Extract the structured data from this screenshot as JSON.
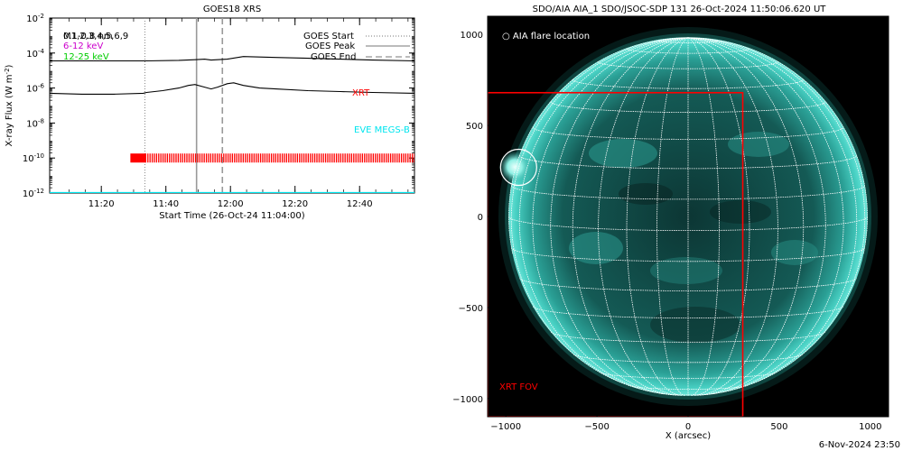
{
  "chart_data": [
    {
      "type": "line",
      "title": "GOES18 XRS",
      "xlabel": "Start Time (26-Oct-24 11:04:00)",
      "ylabel": "X-ray Flux (W m",
      "ylabel_sup": "-2",
      "ylabel_close": ")",
      "x_range_minutes": [
        0,
        113
      ],
      "x_ticks": [
        {
          "minute": 16,
          "label": "11:20"
        },
        {
          "minute": 36,
          "label": "11:40"
        },
        {
          "minute": 56,
          "label": "12:00"
        },
        {
          "minute": 76,
          "label": "12:20"
        },
        {
          "minute": 96,
          "label": "12:40"
        }
      ],
      "yscale": "log",
      "ylim_exp": [
        -12,
        -2
      ],
      "y_ticks": [
        {
          "base": "10",
          "exp": "-12",
          "value": -12
        },
        {
          "base": "10",
          "exp": "-10",
          "value": -10
        },
        {
          "base": "10",
          "exp": "-8",
          "value": -8
        },
        {
          "base": "10",
          "exp": "-6",
          "value": -6
        },
        {
          "base": "10",
          "exp": "-4",
          "value": -4
        },
        {
          "base": "10",
          "exp": "-2",
          "value": -2
        }
      ],
      "legend_left": [
        {
          "label": "0.1-0.8 nm",
          "overlap_label": "M1,2,3,4,5,6,9",
          "color": "#000000"
        },
        {
          "label": "6-12 keV",
          "color": "#cc00cc"
        },
        {
          "label": "12-25 keV",
          "color": "#00cc00"
        }
      ],
      "legend_right": [
        {
          "label": "GOES Start",
          "style": "dotted"
        },
        {
          "label": "GOES Peak",
          "style": "solid"
        },
        {
          "label": "GOES End",
          "style": "dashed"
        }
      ],
      "events": {
        "start_minute": 29.5,
        "peak_minute": 45.5,
        "end_minute": 53.5
      },
      "series": [
        {
          "name": "",
          "color": "#000000",
          "x": [
            0,
            10,
            20,
            30,
            40,
            45,
            48,
            50,
            55,
            60,
            70,
            80,
            90,
            100,
            113
          ],
          "log_y": [
            -4.45,
            -4.45,
            -4.45,
            -4.45,
            -4.42,
            -4.38,
            -4.35,
            -4.4,
            -4.35,
            -4.2,
            -4.25,
            -4.3,
            -4.35,
            -4.4,
            -4.45
          ]
        },
        {
          "name": "",
          "color": "#000000",
          "x": [
            0,
            10,
            20,
            29,
            30,
            35,
            40,
            43,
            45,
            48,
            50,
            52,
            55,
            57,
            60,
            65,
            70,
            80,
            90,
            100,
            113
          ],
          "log_y": [
            -6.3,
            -6.35,
            -6.35,
            -6.3,
            -6.25,
            -6.15,
            -6.0,
            -5.85,
            -5.8,
            -5.95,
            -6.05,
            -5.95,
            -5.75,
            -5.7,
            -5.85,
            -6.0,
            -6.05,
            -6.15,
            -6.2,
            -6.25,
            -6.3
          ]
        },
        {
          "name": "",
          "color": "#00e5ee",
          "x": [
            0,
            113
          ],
          "log_y": [
            -12.0,
            -12.0
          ]
        }
      ],
      "annotations": [
        {
          "text": "XRT",
          "color": "#ff0000"
        },
        {
          "text": "EVE MEGS-B",
          "color": "#00e5ee"
        }
      ],
      "xrt_obs_range_minutes": [
        25,
        113
      ]
    },
    {
      "type": "image",
      "title": "SDO/AIA AIA_1 SDO/JSOC-SDP 131 26-Oct-2024 11:50:06.620 UT",
      "xlabel": "X (arcsec)",
      "x_range_arcsec": [
        -1100,
        1100
      ],
      "y_range_arcsec": [
        -1100,
        1100
      ],
      "x_ticks": [
        {
          "value": -1000,
          "label": "−1000"
        },
        {
          "value": -500,
          "label": "−500"
        },
        {
          "value": 0,
          "label": "0"
        },
        {
          "value": 500,
          "label": "500"
        },
        {
          "value": 1000,
          "label": "1000"
        }
      ],
      "y_ticks": [
        {
          "value": 1000,
          "label": "1000"
        },
        {
          "value": 500,
          "label": "500"
        },
        {
          "value": 0,
          "label": "0"
        },
        {
          "value": -500,
          "label": "−500"
        },
        {
          "value": -1000,
          "label": "−1000"
        }
      ],
      "solar_radius_arcsec": 985,
      "flare_location_arcsec": [
        -930,
        270
      ],
      "flare_label": "○ AIA flare location",
      "xrt_fov_arcsec": {
        "x": [
          -1100,
          300
        ],
        "y": [
          -1100,
          680
        ]
      },
      "xrt_fov_label": "XRT FOV",
      "colors": {
        "xrt": "#ff0000",
        "disk_rim": "#3fc9bd",
        "grid": "#ffffff"
      }
    }
  ],
  "footer": {
    "timestamp": "6-Nov-2024 23:50"
  }
}
